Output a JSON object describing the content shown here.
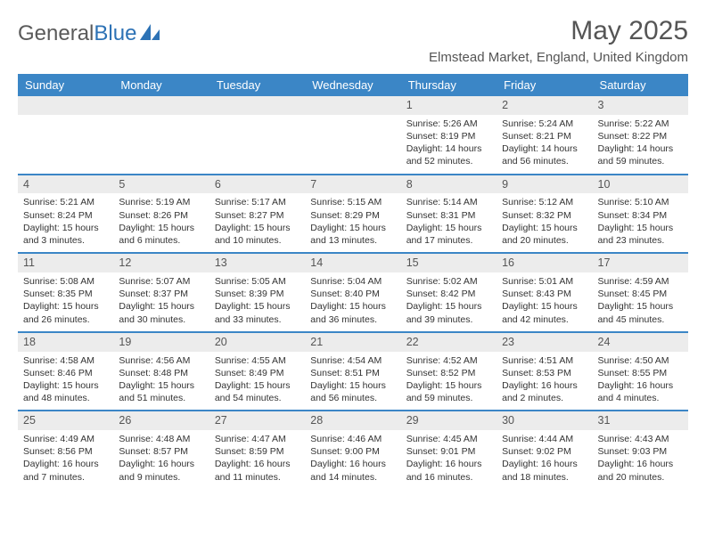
{
  "logo": {
    "part1": "General",
    "part2": "Blue"
  },
  "title": "May 2025",
  "subtitle": "Elmstead Market, England, United Kingdom",
  "colors": {
    "header_bg": "#3b86c6",
    "header_text": "#ffffff",
    "daynum_bg": "#ececec",
    "week_border": "#3b86c6",
    "logo_blue": "#2d72b5",
    "logo_gray": "#5a5a5a"
  },
  "weekdays": [
    "Sunday",
    "Monday",
    "Tuesday",
    "Wednesday",
    "Thursday",
    "Friday",
    "Saturday"
  ],
  "weeks": [
    [
      {
        "empty": true
      },
      {
        "empty": true
      },
      {
        "empty": true
      },
      {
        "empty": true
      },
      {
        "day": "1",
        "sunrise": "Sunrise: 5:26 AM",
        "sunset": "Sunset: 8:19 PM",
        "daylight": "Daylight: 14 hours and 52 minutes."
      },
      {
        "day": "2",
        "sunrise": "Sunrise: 5:24 AM",
        "sunset": "Sunset: 8:21 PM",
        "daylight": "Daylight: 14 hours and 56 minutes."
      },
      {
        "day": "3",
        "sunrise": "Sunrise: 5:22 AM",
        "sunset": "Sunset: 8:22 PM",
        "daylight": "Daylight: 14 hours and 59 minutes."
      }
    ],
    [
      {
        "day": "4",
        "sunrise": "Sunrise: 5:21 AM",
        "sunset": "Sunset: 8:24 PM",
        "daylight": "Daylight: 15 hours and 3 minutes."
      },
      {
        "day": "5",
        "sunrise": "Sunrise: 5:19 AM",
        "sunset": "Sunset: 8:26 PM",
        "daylight": "Daylight: 15 hours and 6 minutes."
      },
      {
        "day": "6",
        "sunrise": "Sunrise: 5:17 AM",
        "sunset": "Sunset: 8:27 PM",
        "daylight": "Daylight: 15 hours and 10 minutes."
      },
      {
        "day": "7",
        "sunrise": "Sunrise: 5:15 AM",
        "sunset": "Sunset: 8:29 PM",
        "daylight": "Daylight: 15 hours and 13 minutes."
      },
      {
        "day": "8",
        "sunrise": "Sunrise: 5:14 AM",
        "sunset": "Sunset: 8:31 PM",
        "daylight": "Daylight: 15 hours and 17 minutes."
      },
      {
        "day": "9",
        "sunrise": "Sunrise: 5:12 AM",
        "sunset": "Sunset: 8:32 PM",
        "daylight": "Daylight: 15 hours and 20 minutes."
      },
      {
        "day": "10",
        "sunrise": "Sunrise: 5:10 AM",
        "sunset": "Sunset: 8:34 PM",
        "daylight": "Daylight: 15 hours and 23 minutes."
      }
    ],
    [
      {
        "day": "11",
        "sunrise": "Sunrise: 5:08 AM",
        "sunset": "Sunset: 8:35 PM",
        "daylight": "Daylight: 15 hours and 26 minutes."
      },
      {
        "day": "12",
        "sunrise": "Sunrise: 5:07 AM",
        "sunset": "Sunset: 8:37 PM",
        "daylight": "Daylight: 15 hours and 30 minutes."
      },
      {
        "day": "13",
        "sunrise": "Sunrise: 5:05 AM",
        "sunset": "Sunset: 8:39 PM",
        "daylight": "Daylight: 15 hours and 33 minutes."
      },
      {
        "day": "14",
        "sunrise": "Sunrise: 5:04 AM",
        "sunset": "Sunset: 8:40 PM",
        "daylight": "Daylight: 15 hours and 36 minutes."
      },
      {
        "day": "15",
        "sunrise": "Sunrise: 5:02 AM",
        "sunset": "Sunset: 8:42 PM",
        "daylight": "Daylight: 15 hours and 39 minutes."
      },
      {
        "day": "16",
        "sunrise": "Sunrise: 5:01 AM",
        "sunset": "Sunset: 8:43 PM",
        "daylight": "Daylight: 15 hours and 42 minutes."
      },
      {
        "day": "17",
        "sunrise": "Sunrise: 4:59 AM",
        "sunset": "Sunset: 8:45 PM",
        "daylight": "Daylight: 15 hours and 45 minutes."
      }
    ],
    [
      {
        "day": "18",
        "sunrise": "Sunrise: 4:58 AM",
        "sunset": "Sunset: 8:46 PM",
        "daylight": "Daylight: 15 hours and 48 minutes."
      },
      {
        "day": "19",
        "sunrise": "Sunrise: 4:56 AM",
        "sunset": "Sunset: 8:48 PM",
        "daylight": "Daylight: 15 hours and 51 minutes."
      },
      {
        "day": "20",
        "sunrise": "Sunrise: 4:55 AM",
        "sunset": "Sunset: 8:49 PM",
        "daylight": "Daylight: 15 hours and 54 minutes."
      },
      {
        "day": "21",
        "sunrise": "Sunrise: 4:54 AM",
        "sunset": "Sunset: 8:51 PM",
        "daylight": "Daylight: 15 hours and 56 minutes."
      },
      {
        "day": "22",
        "sunrise": "Sunrise: 4:52 AM",
        "sunset": "Sunset: 8:52 PM",
        "daylight": "Daylight: 15 hours and 59 minutes."
      },
      {
        "day": "23",
        "sunrise": "Sunrise: 4:51 AM",
        "sunset": "Sunset: 8:53 PM",
        "daylight": "Daylight: 16 hours and 2 minutes."
      },
      {
        "day": "24",
        "sunrise": "Sunrise: 4:50 AM",
        "sunset": "Sunset: 8:55 PM",
        "daylight": "Daylight: 16 hours and 4 minutes."
      }
    ],
    [
      {
        "day": "25",
        "sunrise": "Sunrise: 4:49 AM",
        "sunset": "Sunset: 8:56 PM",
        "daylight": "Daylight: 16 hours and 7 minutes."
      },
      {
        "day": "26",
        "sunrise": "Sunrise: 4:48 AM",
        "sunset": "Sunset: 8:57 PM",
        "daylight": "Daylight: 16 hours and 9 minutes."
      },
      {
        "day": "27",
        "sunrise": "Sunrise: 4:47 AM",
        "sunset": "Sunset: 8:59 PM",
        "daylight": "Daylight: 16 hours and 11 minutes."
      },
      {
        "day": "28",
        "sunrise": "Sunrise: 4:46 AM",
        "sunset": "Sunset: 9:00 PM",
        "daylight": "Daylight: 16 hours and 14 minutes."
      },
      {
        "day": "29",
        "sunrise": "Sunrise: 4:45 AM",
        "sunset": "Sunset: 9:01 PM",
        "daylight": "Daylight: 16 hours and 16 minutes."
      },
      {
        "day": "30",
        "sunrise": "Sunrise: 4:44 AM",
        "sunset": "Sunset: 9:02 PM",
        "daylight": "Daylight: 16 hours and 18 minutes."
      },
      {
        "day": "31",
        "sunrise": "Sunrise: 4:43 AM",
        "sunset": "Sunset: 9:03 PM",
        "daylight": "Daylight: 16 hours and 20 minutes."
      }
    ]
  ]
}
